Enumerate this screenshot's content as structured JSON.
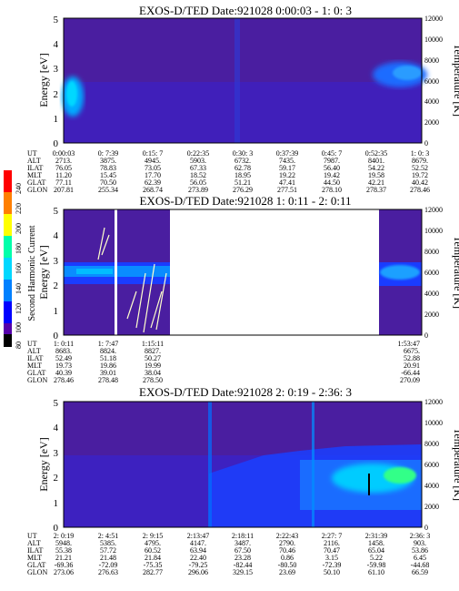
{
  "colorbar": {
    "label": "Second Harmonic Current",
    "ticks": [
      240,
      220,
      200,
      180,
      160,
      140,
      120,
      100,
      80
    ],
    "colors": [
      "#ff0000",
      "#ff7f00",
      "#ffff00",
      "#00ffaa",
      "#00d8ff",
      "#0080ff",
      "#0000ff",
      "#5500aa",
      "#000000"
    ]
  },
  "chart_data": [
    {
      "type": "heatmap",
      "title": "EXOS-D/TED   Date:921028  0:00:03 - 1: 0: 3",
      "ylabel": "Energy [eV]",
      "ylabel_right": "Temperature [K]",
      "ylim": [
        0,
        5
      ],
      "ylim_right": [
        0,
        12000
      ],
      "yticks": [
        "0",
        "1",
        "2",
        "3",
        "4",
        "5"
      ],
      "yticks_right": [
        "0",
        "2000",
        "4000",
        "6000",
        "8000",
        "10000",
        "12000"
      ],
      "orbit_table": {
        "row_labels": [
          "UT",
          "ALT",
          "ILAT",
          "MLT",
          "GLAT",
          "GLON"
        ],
        "columns": [
          [
            "0:00:03",
            "2713.",
            "76.05",
            "11.20",
            "77.11",
            "207.81"
          ],
          [
            "0: 7:39",
            "3875.",
            "78.83",
            "15.45",
            "70.50",
            "255.34"
          ],
          [
            "0:15: 7",
            "4945.",
            "73.05",
            "17.70",
            "62.39",
            "268.74"
          ],
          [
            "0:22:35",
            "5903.",
            "67.33",
            "18.52",
            "56.05",
            "273.89"
          ],
          [
            "0:30: 3",
            "6732.",
            "62.78",
            "18.95",
            "51.21",
            "276.29"
          ],
          [
            "0:37:39",
            "7435.",
            "59.17",
            "19.22",
            "47.41",
            "277.51"
          ],
          [
            "0:45: 7",
            "7987.",
            "56.40",
            "19.42",
            "44.50",
            "278.10"
          ],
          [
            "0:52:35",
            "8401.",
            "54.22",
            "19.58",
            "42.21",
            "278.37"
          ],
          [
            "1: 0: 3",
            "8679.",
            "52.52",
            "19.72",
            "40.42",
            "278.46"
          ]
        ]
      }
    },
    {
      "type": "heatmap",
      "title": "EXOS-D/TED   Date:921028  1: 0:11 - 2: 0:11",
      "ylabel": "Energy [eV]",
      "ylabel_right": "Temperature [K]",
      "ylim": [
        0,
        5
      ],
      "ylim_right": [
        0,
        12000
      ],
      "yticks": [
        "0",
        "1",
        "2",
        "3",
        "4",
        "5"
      ],
      "yticks_right": [
        "0",
        "2000",
        "4000",
        "6000",
        "8000",
        "10000",
        "12000"
      ],
      "orbit_table": {
        "row_labels": [
          "UT",
          "ALT",
          "ILAT",
          "MLT",
          "GLAT",
          "GLON"
        ],
        "columns": [
          [
            "1: 0:11",
            "8683.",
            "52.49",
            "19.73",
            "40.39",
            "278.46"
          ],
          [
            "1: 7:47",
            "8824.",
            "51.18",
            "19.86",
            "39.01",
            "278.48"
          ],
          [
            "1:15:11",
            "8827.",
            "50.27",
            "19.99",
            "38.04",
            "278.50"
          ],
          [
            "1:53:47",
            "6675.",
            "52.88",
            "20.91",
            "-66.44",
            "270.09"
          ]
        ]
      }
    },
    {
      "type": "heatmap",
      "title": "EXOS-D/TED   Date:921028  2: 0:19 - 2:36: 3",
      "ylabel": "Energy [eV]",
      "ylabel_right": "Temperature [K]",
      "ylim": [
        0,
        5
      ],
      "ylim_right": [
        0,
        12000
      ],
      "yticks": [
        "0",
        "1",
        "2",
        "3",
        "4",
        "5"
      ],
      "yticks_right": [
        "0",
        "2000",
        "4000",
        "6000",
        "8000",
        "10000",
        "12000"
      ],
      "orbit_table": {
        "row_labels": [
          "UT",
          "ALT",
          "ILAT",
          "MLT",
          "GLAT",
          "GLON"
        ],
        "columns": [
          [
            "2: 0:19",
            "5948.",
            "55.38",
            "21.21",
            "-69.36",
            "273.06"
          ],
          [
            "2: 4:51",
            "5385.",
            "57.72",
            "21.48",
            "-72.09",
            "276.63"
          ],
          [
            "2: 9:15",
            "4795.",
            "60.52",
            "21.84",
            "-75.35",
            "282.77"
          ],
          [
            "2:13:47",
            "4147.",
            "63.94",
            "22.40",
            "-79.25",
            "296.06"
          ],
          [
            "2:18:11",
            "3487.",
            "67.50",
            "23.28",
            "-82.44",
            "329.15"
          ],
          [
            "2:22:43",
            "2790.",
            "70.46",
            "0.86",
            "-80.50",
            "23.69"
          ],
          [
            "2:27: 7",
            "2116.",
            "70.47",
            "3.15",
            "-72.39",
            "50.10"
          ],
          [
            "2:31:39",
            "1458.",
            "65.04",
            "5.22",
            "-59.98",
            "61.10"
          ],
          [
            "2:36: 3",
            "903.",
            "53.86",
            "6.45",
            "-44.68",
            "66.59"
          ]
        ]
      }
    }
  ]
}
